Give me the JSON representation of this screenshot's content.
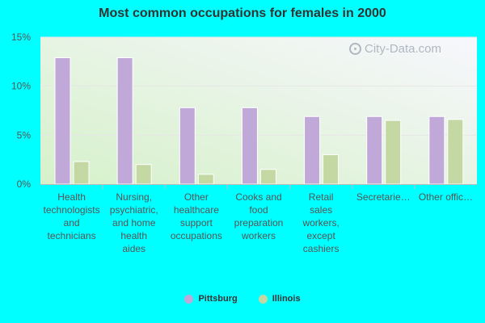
{
  "chart_data": {
    "type": "bar",
    "title": "Most common occupations for females in 2000",
    "categories": [
      [
        "Health",
        "technologists",
        "and",
        "technicians"
      ],
      [
        "Nursing,",
        "psychiatric,",
        "and home",
        "health",
        "aides"
      ],
      [
        "Other",
        "healthcare",
        "support",
        "occupations"
      ],
      [
        "Cooks and",
        "food",
        "preparation",
        "workers"
      ],
      [
        "Retail",
        "sales",
        "workers,",
        "except",
        "cashiers"
      ],
      [
        "Secretarie…"
      ],
      [
        "Other offic…"
      ]
    ],
    "series": [
      {
        "name": "Pittsburg",
        "color": "#c0a8d8",
        "values": [
          12.9,
          12.9,
          7.8,
          7.8,
          6.9,
          6.9,
          6.9
        ]
      },
      {
        "name": "Illinois",
        "color": "#c4d8a4",
        "values": [
          2.3,
          2.0,
          1.0,
          1.5,
          3.0,
          6.5,
          6.6
        ]
      }
    ],
    "yticks": [
      "0%",
      "5%",
      "10%",
      "15%"
    ],
    "ylim": [
      0,
      15
    ],
    "ylabel": "",
    "xlabel": "",
    "grid": true,
    "legend_position": "bottom-center"
  },
  "watermark": "City-Data.com",
  "colors": {
    "background": "#00ffff",
    "plot_gradient_start": "#d8f2cc",
    "plot_gradient_end": "#f6f6fc"
  }
}
